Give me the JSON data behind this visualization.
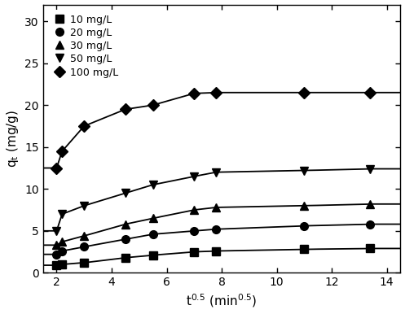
{
  "series": [
    {
      "label": "10 mg/L",
      "marker": "s",
      "x": [
        2.0,
        2.2,
        3.0,
        4.5,
        5.5,
        7.0,
        7.8,
        11.0,
        13.4
      ],
      "y": [
        0.9,
        1.0,
        1.2,
        1.8,
        2.1,
        2.5,
        2.6,
        2.8,
        2.9
      ]
    },
    {
      "label": "20 mg/L",
      "marker": "o",
      "x": [
        2.0,
        2.2,
        3.0,
        4.5,
        5.5,
        7.0,
        7.8,
        11.0,
        13.4
      ],
      "y": [
        2.2,
        2.6,
        3.1,
        4.0,
        4.6,
        5.0,
        5.2,
        5.6,
        5.8
      ]
    },
    {
      "label": "30 mg/L",
      "marker": "^",
      "x": [
        2.0,
        2.2,
        3.0,
        4.5,
        5.5,
        7.0,
        7.8,
        11.0,
        13.4
      ],
      "y": [
        3.3,
        3.7,
        4.4,
        5.8,
        6.5,
        7.5,
        7.8,
        8.0,
        8.2
      ]
    },
    {
      "label": "50 mg/L",
      "marker": "v",
      "x": [
        2.0,
        2.2,
        3.0,
        4.5,
        5.5,
        7.0,
        7.8,
        11.0,
        13.4
      ],
      "y": [
        5.0,
        7.0,
        8.0,
        9.5,
        10.5,
        11.5,
        12.0,
        12.2,
        12.4
      ]
    },
    {
      "label": "100 mg/L",
      "marker": "D",
      "x": [
        2.0,
        2.2,
        3.0,
        4.5,
        5.5,
        7.0,
        7.8,
        11.0,
        13.4
      ],
      "y": [
        12.5,
        14.5,
        17.5,
        19.5,
        20.0,
        21.4,
        21.5,
        21.5,
        21.5
      ]
    }
  ],
  "xlabel": "t$^{0.5}$ (min$^{0.5}$)",
  "ylabel": "q$_\\mathrm{t}$ (mg/g)",
  "xlim": [
    1.5,
    14.5
  ],
  "ylim": [
    0,
    32
  ],
  "xticks": [
    2,
    4,
    6,
    8,
    10,
    12,
    14
  ],
  "yticks": [
    0,
    5,
    10,
    15,
    20,
    25,
    30
  ],
  "color": "#000000",
  "markersize": 7,
  "linewidth": 1.3,
  "background_color": "#ffffff",
  "figsize": [
    4.97,
    3.86
  ],
  "dpi": 100
}
